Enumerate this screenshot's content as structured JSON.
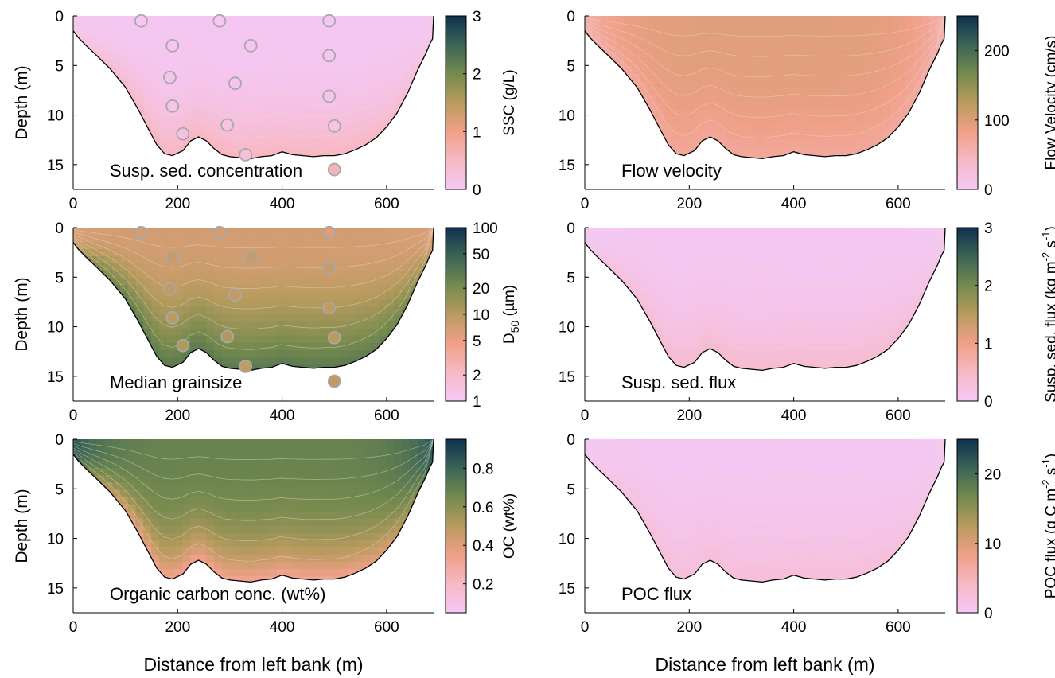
{
  "figure": {
    "colors": {
      "cmap": [
        "#f5c8f7",
        "#f7b9c5",
        "#f0a088",
        "#b89b5e",
        "#758a4e",
        "#3a6556",
        "#10304f"
      ],
      "contour_line": "#e6dcc8",
      "bed_line": "#000000",
      "sample_marker_edge": "#a8a8a8"
    }
  },
  "chart_data": [
    {
      "type": "heatmap",
      "panel": "top-left",
      "label": "Susp. sed. concentration",
      "xlabel": "",
      "ylabel": "Depth (m)",
      "xlim": [
        0,
        690
      ],
      "ylim": [
        17.5,
        0
      ],
      "xticks": [
        "0",
        "200",
        "400",
        "600"
      ],
      "yticks": [
        "0",
        "5",
        "10",
        "15"
      ],
      "colorbar": {
        "label": "SSC (g/L)",
        "range": [
          0,
          3
        ],
        "scale": "linear",
        "ticks": [
          "0",
          "1",
          "2",
          "3"
        ]
      },
      "field": {
        "surface": 0.05,
        "bed": 0.55,
        "edge": 0.05
      },
      "samples": [
        {
          "x": 130,
          "depth": 0.5,
          "value": 0.05
        },
        {
          "x": 280,
          "depth": 0.5,
          "value": 0.05
        },
        {
          "x": 490,
          "depth": 0.5,
          "value": 0.05
        },
        {
          "x": 190,
          "depth": 3,
          "value": 0.08
        },
        {
          "x": 340,
          "depth": 3,
          "value": 0.08
        },
        {
          "x": 490,
          "depth": 4,
          "value": 0.08
        },
        {
          "x": 185,
          "depth": 6.2,
          "value": 0.1
        },
        {
          "x": 310,
          "depth": 6.8,
          "value": 0.1
        },
        {
          "x": 490,
          "depth": 8.1,
          "value": 0.12
        },
        {
          "x": 190,
          "depth": 9.1,
          "value": 0.14
        },
        {
          "x": 295,
          "depth": 11,
          "value": 0.16
        },
        {
          "x": 500,
          "depth": 11.1,
          "value": 0.16
        },
        {
          "x": 210,
          "depth": 11.9,
          "value": 0.22
        },
        {
          "x": 330,
          "depth": 14,
          "value": 0.28
        },
        {
          "x": 500,
          "depth": 15.5,
          "value": 0.6
        }
      ]
    },
    {
      "type": "heatmap",
      "panel": "top-right",
      "label": "Flow velocity",
      "xlabel": "",
      "ylabel": "",
      "xlim": [
        0,
        690
      ],
      "ylim": [
        17.5,
        0
      ],
      "xticks": [
        "0",
        "200",
        "400",
        "600"
      ],
      "yticks": [
        "0",
        "5",
        "10",
        "15"
      ],
      "colorbar": {
        "label": "Flow Velocity (cm/s)",
        "range": [
          0,
          250
        ],
        "scale": "linear",
        "ticks": [
          "0",
          "100",
          "200"
        ]
      },
      "field": {
        "surface": 95,
        "bed": 70,
        "edge": 55
      }
    },
    {
      "type": "heatmap",
      "panel": "middle-left",
      "label": "Median grainsize",
      "xlabel": "",
      "ylabel": "Depth (m)",
      "xlim": [
        0,
        690
      ],
      "ylim": [
        17.5,
        0
      ],
      "xticks": [
        "0",
        "200",
        "400",
        "600"
      ],
      "yticks": [
        "0",
        "5",
        "10",
        "15"
      ],
      "colorbar": {
        "label_main": "D",
        "label_sub": "50",
        "label_unit": " (µm)",
        "range": [
          1,
          100
        ],
        "scale": "log",
        "ticks": [
          "1",
          "2",
          "5",
          "10",
          "20",
          "50",
          "100"
        ]
      },
      "field": {
        "surface": 7,
        "bed": 30,
        "edge": 6
      },
      "samples": [
        {
          "x": 130,
          "depth": 0.5,
          "value": 7
        },
        {
          "x": 280,
          "depth": 0.5,
          "value": 7
        },
        {
          "x": 490,
          "depth": 0.5,
          "value": 6
        },
        {
          "x": 190,
          "depth": 3,
          "value": 8
        },
        {
          "x": 340,
          "depth": 3,
          "value": 8
        },
        {
          "x": 490,
          "depth": 4,
          "value": 8
        },
        {
          "x": 185,
          "depth": 6.2,
          "value": 9
        },
        {
          "x": 310,
          "depth": 6.8,
          "value": 9
        },
        {
          "x": 490,
          "depth": 8.1,
          "value": 9
        },
        {
          "x": 190,
          "depth": 9.1,
          "value": 10
        },
        {
          "x": 295,
          "depth": 11,
          "value": 11
        },
        {
          "x": 500,
          "depth": 11.1,
          "value": 10
        },
        {
          "x": 210,
          "depth": 11.9,
          "value": 11
        },
        {
          "x": 330,
          "depth": 14,
          "value": 9
        },
        {
          "x": 500,
          "depth": 15.5,
          "value": 9
        }
      ]
    },
    {
      "type": "heatmap",
      "panel": "middle-right",
      "label": "Susp. sed. flux",
      "xlabel": "",
      "ylabel": "",
      "xlim": [
        0,
        690
      ],
      "ylim": [
        17.5,
        0
      ],
      "xticks": [
        "0",
        "200",
        "400",
        "600"
      ],
      "yticks": [
        "0",
        "5",
        "10",
        "15"
      ],
      "colorbar": {
        "label_main": "Susp. sed. flux (kg m",
        "label_sup1": "-2",
        "label_mid": " s",
        "label_sup2": "-1",
        "label_end": ")",
        "range": [
          0,
          3
        ],
        "scale": "linear",
        "ticks": [
          "0",
          "1",
          "2",
          "3"
        ]
      },
      "field": {
        "surface": 0.06,
        "bed": 0.4,
        "edge": 0.02
      }
    },
    {
      "type": "heatmap",
      "panel": "bottom-left",
      "label": "Organic carbon conc. (wt%)",
      "xlabel": "Distance from left bank (m)",
      "ylabel": "Depth (m)",
      "xlim": [
        0,
        690
      ],
      "ylim": [
        17.5,
        0
      ],
      "xticks": [
        "0",
        "200",
        "400",
        "600"
      ],
      "yticks": [
        "0",
        "5",
        "10",
        "15"
      ],
      "colorbar": {
        "label": "OC (wt%)",
        "range": [
          0.05,
          0.95
        ],
        "scale": "linear",
        "ticks": [
          "0.2",
          "0.4",
          "0.6",
          "0.8"
        ]
      },
      "field": {
        "surface": 0.68,
        "bed": 0.32,
        "edge": 0.85
      }
    },
    {
      "type": "heatmap",
      "panel": "bottom-right",
      "label": "POC flux",
      "xlabel": "Distance from left bank (m)",
      "ylabel": "",
      "xlim": [
        0,
        690
      ],
      "ylim": [
        17.5,
        0
      ],
      "xticks": [
        "0",
        "200",
        "400",
        "600"
      ],
      "yticks": [
        "0",
        "5",
        "10",
        "15"
      ],
      "colorbar": {
        "label_main": "POC flux (g C m",
        "label_sup1": "-2",
        "label_mid": " s",
        "label_sup2": "-1",
        "label_end": ")",
        "range": [
          0,
          25
        ],
        "scale": "linear",
        "ticks": [
          "0",
          "10",
          "20"
        ]
      },
      "field": {
        "surface": 0.5,
        "bed": 2.5,
        "edge": 0.2
      }
    }
  ],
  "channel_bed": {
    "x": [
      0,
      10,
      25,
      45,
      70,
      100,
      125,
      145,
      160,
      175,
      190,
      210,
      225,
      240,
      255,
      270,
      285,
      300,
      320,
      340,
      360,
      380,
      400,
      420,
      440,
      460,
      480,
      500,
      520,
      540,
      560,
      580,
      600,
      620,
      640,
      660,
      675,
      683,
      688,
      690
    ],
    "depth": [
      1.5,
      2.2,
      3.0,
      4.0,
      5.3,
      7.2,
      9.5,
      11.5,
      13.0,
      13.9,
      14.1,
      13.6,
      12.6,
      12.2,
      12.6,
      13.4,
      14.0,
      14.2,
      14.3,
      14.4,
      14.2,
      14.1,
      13.7,
      14.0,
      14.1,
      14.2,
      14.1,
      14.1,
      13.9,
      13.5,
      13.0,
      12.3,
      11.2,
      9.8,
      7.8,
      5.4,
      3.8,
      2.8,
      2.3,
      0
    ]
  }
}
